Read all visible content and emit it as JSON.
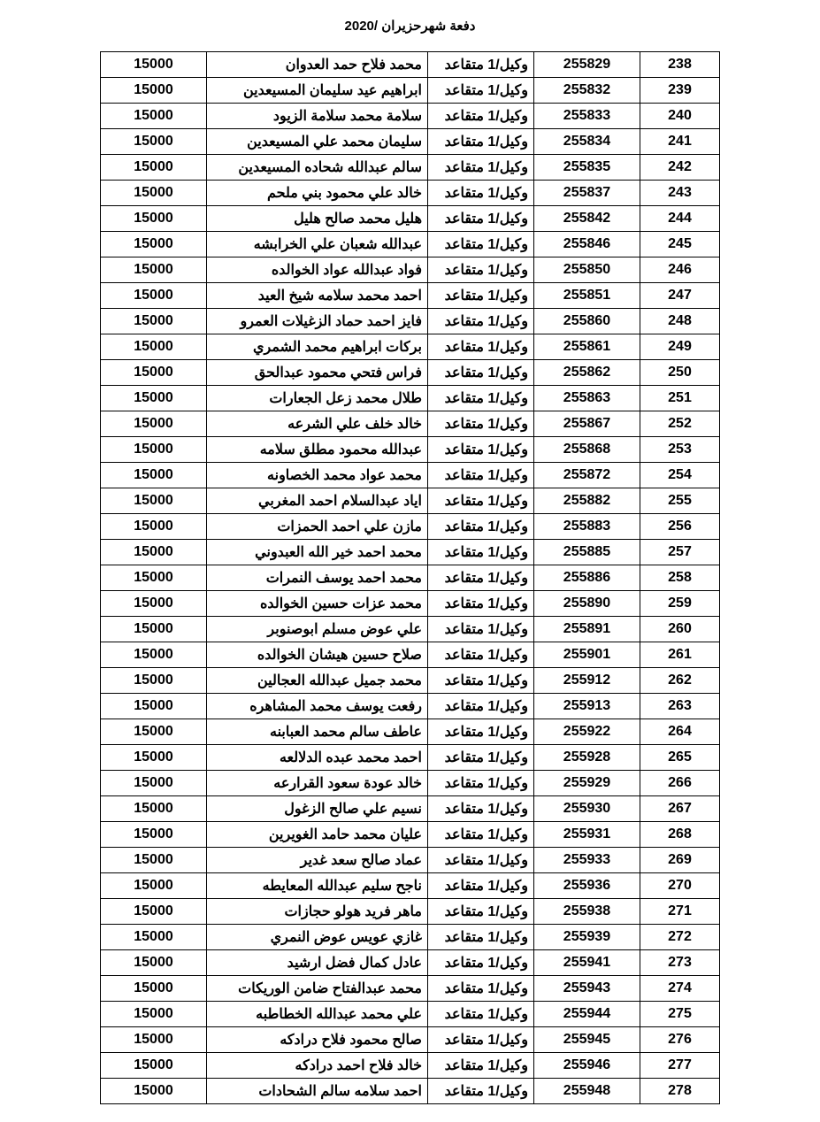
{
  "title": "دفعة شهرحزيران /2020",
  "table": {
    "columns": [
      "seq",
      "id",
      "rank",
      "name",
      "amount"
    ],
    "rows": [
      {
        "seq": "238",
        "id": "255829",
        "rank": "وكيل/1 متقاعد",
        "name": "محمد فلاح حمد العدوان",
        "amount": "15000"
      },
      {
        "seq": "239",
        "id": "255832",
        "rank": "وكيل/1 متقاعد",
        "name": "ابراهيم عيد سليمان المسيعدين",
        "amount": "15000"
      },
      {
        "seq": "240",
        "id": "255833",
        "rank": "وكيل/1 متقاعد",
        "name": "سلامة محمد سلامة الزيود",
        "amount": "15000"
      },
      {
        "seq": "241",
        "id": "255834",
        "rank": "وكيل/1 متقاعد",
        "name": "سليمان محمد علي المسيعدين",
        "amount": "15000"
      },
      {
        "seq": "242",
        "id": "255835",
        "rank": "وكيل/1 متقاعد",
        "name": "سالم عبدالله شحاده المسيعدين",
        "amount": "15000"
      },
      {
        "seq": "243",
        "id": "255837",
        "rank": "وكيل/1 متقاعد",
        "name": "خالد علي محمود بني ملحم",
        "amount": "15000"
      },
      {
        "seq": "244",
        "id": "255842",
        "rank": "وكيل/1 متقاعد",
        "name": "هليل محمد صالح هليل",
        "amount": "15000"
      },
      {
        "seq": "245",
        "id": "255846",
        "rank": "وكيل/1 متقاعد",
        "name": "عبدالله شعبان علي الخرابشه",
        "amount": "15000"
      },
      {
        "seq": "246",
        "id": "255850",
        "rank": "وكيل/1 متقاعد",
        "name": "فواد عبدالله عواد الخوالده",
        "amount": "15000"
      },
      {
        "seq": "247",
        "id": "255851",
        "rank": "وكيل/1 متقاعد",
        "name": "احمد محمد سلامه شيخ العيد",
        "amount": "15000"
      },
      {
        "seq": "248",
        "id": "255860",
        "rank": "وكيل/1 متقاعد",
        "name": "فايز احمد حماد الزغيلات العمرو",
        "amount": "15000"
      },
      {
        "seq": "249",
        "id": "255861",
        "rank": "وكيل/1 متقاعد",
        "name": "بركات ابراهيم محمد الشمري",
        "amount": "15000"
      },
      {
        "seq": "250",
        "id": "255862",
        "rank": "وكيل/1 متقاعد",
        "name": "فراس فتحي محمود عبدالحق",
        "amount": "15000"
      },
      {
        "seq": "251",
        "id": "255863",
        "rank": "وكيل/1 متقاعد",
        "name": "طلال محمد زعل الجعارات",
        "amount": "15000"
      },
      {
        "seq": "252",
        "id": "255867",
        "rank": "وكيل/1 متقاعد",
        "name": "خالد خلف علي الشرعه",
        "amount": "15000"
      },
      {
        "seq": "253",
        "id": "255868",
        "rank": "وكيل/1 متقاعد",
        "name": "عبدالله محمود مطلق سلامه",
        "amount": "15000"
      },
      {
        "seq": "254",
        "id": "255872",
        "rank": "وكيل/1 متقاعد",
        "name": "محمد عواد محمد الخصاونه",
        "amount": "15000"
      },
      {
        "seq": "255",
        "id": "255882",
        "rank": "وكيل/1 متقاعد",
        "name": "اياد عبدالسلام احمد المغربي",
        "amount": "15000"
      },
      {
        "seq": "256",
        "id": "255883",
        "rank": "وكيل/1 متقاعد",
        "name": "مازن علي احمد الحمزات",
        "amount": "15000"
      },
      {
        "seq": "257",
        "id": "255885",
        "rank": "وكيل/1 متقاعد",
        "name": "محمد احمد خير الله العبدوني",
        "amount": "15000"
      },
      {
        "seq": "258",
        "id": "255886",
        "rank": "وكيل/1 متقاعد",
        "name": "محمد احمد يوسف النمرات",
        "amount": "15000"
      },
      {
        "seq": "259",
        "id": "255890",
        "rank": "وكيل/1 متقاعد",
        "name": "محمد عزات حسين الخوالده",
        "amount": "15000"
      },
      {
        "seq": "260",
        "id": "255891",
        "rank": "وكيل/1 متقاعد",
        "name": "علي عوض مسلم ابوصنوبر",
        "amount": "15000"
      },
      {
        "seq": "261",
        "id": "255901",
        "rank": "وكيل/1 متقاعد",
        "name": "صلاح حسين هيشان الخوالده",
        "amount": "15000"
      },
      {
        "seq": "262",
        "id": "255912",
        "rank": "وكيل/1 متقاعد",
        "name": "محمد جميل عبدالله العجالين",
        "amount": "15000"
      },
      {
        "seq": "263",
        "id": "255913",
        "rank": "وكيل/1 متقاعد",
        "name": "رفعت يوسف محمد المشاهره",
        "amount": "15000"
      },
      {
        "seq": "264",
        "id": "255922",
        "rank": "وكيل/1 متقاعد",
        "name": "عاطف سالم محمد العبابنه",
        "amount": "15000"
      },
      {
        "seq": "265",
        "id": "255928",
        "rank": "وكيل/1 متقاعد",
        "name": "احمد محمد عبده الدلالعه",
        "amount": "15000"
      },
      {
        "seq": "266",
        "id": "255929",
        "rank": "وكيل/1 متقاعد",
        "name": "خالد عودة سعود القرارعه",
        "amount": "15000"
      },
      {
        "seq": "267",
        "id": "255930",
        "rank": "وكيل/1 متقاعد",
        "name": "نسيم علي صالح الزغول",
        "amount": "15000"
      },
      {
        "seq": "268",
        "id": "255931",
        "rank": "وكيل/1 متقاعد",
        "name": "عليان محمد حامد الغويرين",
        "amount": "15000"
      },
      {
        "seq": "269",
        "id": "255933",
        "rank": "وكيل/1 متقاعد",
        "name": "عماد صالح سعد غدير",
        "amount": "15000"
      },
      {
        "seq": "270",
        "id": "255936",
        "rank": "وكيل/1 متقاعد",
        "name": "ناجح سليم عبدالله المعايطه",
        "amount": "15000"
      },
      {
        "seq": "271",
        "id": "255938",
        "rank": "وكيل/1 متقاعد",
        "name": "ماهر فريد هولو حجازات",
        "amount": "15000"
      },
      {
        "seq": "272",
        "id": "255939",
        "rank": "وكيل/1 متقاعد",
        "name": "غازي عويس عوض النمري",
        "amount": "15000"
      },
      {
        "seq": "273",
        "id": "255941",
        "rank": "وكيل/1 متقاعد",
        "name": "عادل كمال فضل ارشيد",
        "amount": "15000"
      },
      {
        "seq": "274",
        "id": "255943",
        "rank": "وكيل/1 متقاعد",
        "name": "محمد عبدالفتاح ضامن الوريكات",
        "amount": "15000"
      },
      {
        "seq": "275",
        "id": "255944",
        "rank": "وكيل/1 متقاعد",
        "name": "علي محمد عبدالله الخطاطبه",
        "amount": "15000"
      },
      {
        "seq": "276",
        "id": "255945",
        "rank": "وكيل/1 متقاعد",
        "name": "صالح محمود فلاح درادكه",
        "amount": "15000"
      },
      {
        "seq": "277",
        "id": "255946",
        "rank": "وكيل/1 متقاعد",
        "name": "خالد فلاح احمد درادكه",
        "amount": "15000"
      },
      {
        "seq": "278",
        "id": "255948",
        "rank": "وكيل/1 متقاعد",
        "name": "احمد سلامه سالم الشحادات",
        "amount": "15000"
      }
    ]
  },
  "styling": {
    "background_color": "#ffffff",
    "text_color": "#000000",
    "border_color": "#000000",
    "font_family": "Arial",
    "title_fontsize": 15,
    "cell_fontsize": 16,
    "font_weight": "bold",
    "col_widths": {
      "seq": 90,
      "id": 120,
      "rank": 120,
      "name": 250,
      "amount": 120
    }
  }
}
